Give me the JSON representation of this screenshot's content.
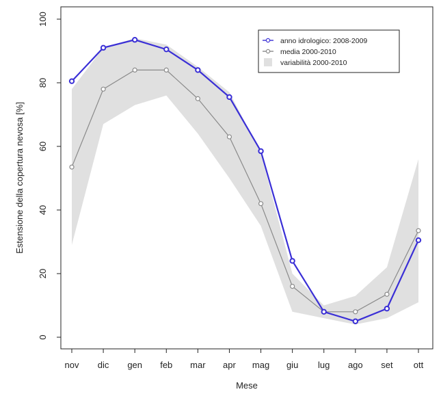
{
  "chart_data": {
    "type": "line",
    "xlabel": "Mese",
    "ylabel": "Estensione della copertura nevosa [%]",
    "categories": [
      "nov",
      "dic",
      "gen",
      "feb",
      "mar",
      "apr",
      "mag",
      "giu",
      "lug",
      "ago",
      "set",
      "ott"
    ],
    "ylim": [
      0,
      100
    ],
    "yticks": [
      0,
      20,
      40,
      60,
      80,
      100
    ],
    "grid": false,
    "legend_position": "top-right",
    "series": [
      {
        "name": "anno idrologico: 2008-2009",
        "kind": "line-markers",
        "color": "#3a2fd6",
        "values": [
          80.5,
          91,
          93.5,
          90.5,
          84,
          75.5,
          58.5,
          24,
          8,
          5,
          9,
          30.5
        ]
      },
      {
        "name": "media 2000-2010",
        "kind": "line-markers",
        "color": "#8a8a8a",
        "values": [
          53.5,
          78,
          84,
          84,
          75,
          63,
          42,
          16,
          8,
          8,
          13.5,
          33.5
        ]
      },
      {
        "name": "variabilità 2000-2010",
        "kind": "band",
        "color": "#e0e0e0",
        "lower": [
          29,
          67,
          73,
          76,
          64,
          50,
          35,
          8,
          6,
          4,
          6,
          11
        ],
        "upper": [
          78,
          91,
          94,
          92,
          85,
          77,
          58,
          20,
          10,
          13,
          22,
          56
        ]
      }
    ]
  }
}
